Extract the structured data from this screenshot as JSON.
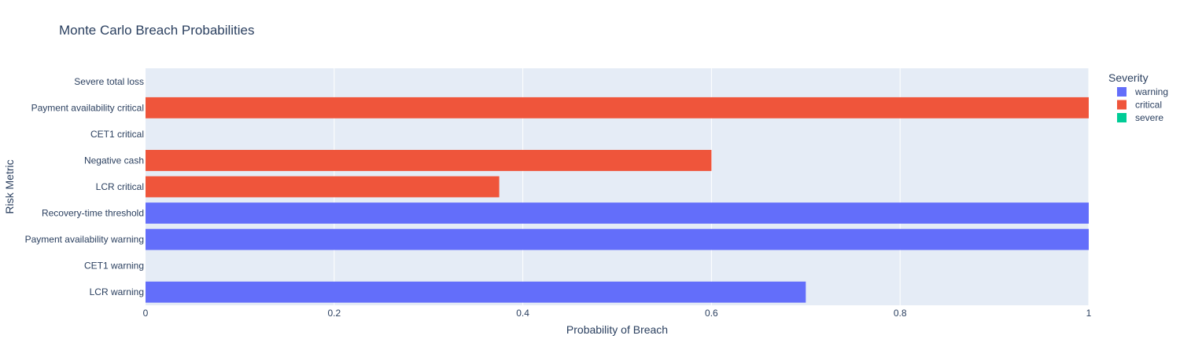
{
  "chart_data": {
    "type": "bar",
    "orientation": "horizontal",
    "title": "Monte Carlo Breach Probabilities",
    "xlabel": "Probability of Breach",
    "ylabel": "Risk Metric",
    "xlim": [
      0,
      1
    ],
    "x_ticks": [
      "0",
      "0.2",
      "0.4",
      "0.6",
      "0.8",
      "1"
    ],
    "grid": true,
    "legend_placement": "top-right",
    "legend_title": "Severity",
    "categories": [
      "LCR warning",
      "CET1 warning",
      "Payment availability warning",
      "Recovery-time threshold",
      "LCR critical",
      "Negative cash",
      "CET1 critical",
      "Payment availability critical",
      "Severe total loss"
    ],
    "series": [
      {
        "name": "warning",
        "color": "#636efa",
        "points": [
          {
            "category": "LCR warning",
            "value": 0.7
          },
          {
            "category": "CET1 warning",
            "value": 0
          },
          {
            "category": "Payment availability warning",
            "value": 1.0
          },
          {
            "category": "Recovery-time threshold",
            "value": 1.0
          }
        ]
      },
      {
        "name": "critical",
        "color": "#ef553b",
        "points": [
          {
            "category": "LCR critical",
            "value": 0.375
          },
          {
            "category": "Negative cash",
            "value": 0.6
          },
          {
            "category": "CET1 critical",
            "value": 0
          },
          {
            "category": "Payment availability critical",
            "value": 1.0
          }
        ]
      },
      {
        "name": "severe",
        "color": "#00cc96",
        "points": [
          {
            "category": "Severe total loss",
            "value": 0
          }
        ]
      }
    ]
  }
}
